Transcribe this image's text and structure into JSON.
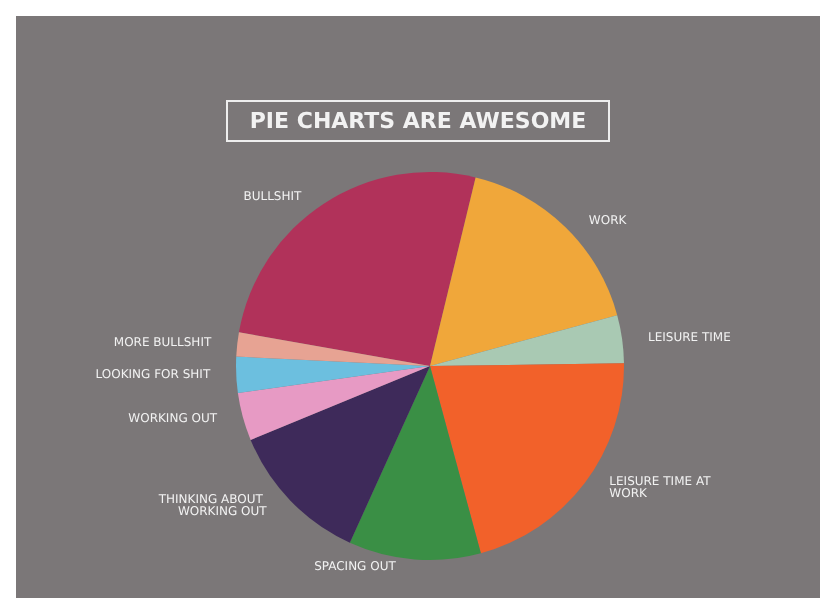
{
  "chart_data": {
    "type": "pie",
    "title": "PIE CHARTS ARE AWESOME",
    "categories": [
      "BULLSHIT",
      "WORK",
      "LEISURE TIME",
      "LEISURE TIME AT WORK",
      "SPACING OUT",
      "THINKING ABOUT WORKING OUT",
      "WORKING OUT",
      "LOOKING FOR SHIT",
      "MORE BULLSHIT"
    ],
    "values": [
      26,
      17,
      4,
      21,
      11,
      12,
      4,
      3,
      2
    ],
    "colors": [
      "#b1325a",
      "#f0a73a",
      "#a9c9b3",
      "#f2612a",
      "#3a8f45",
      "#3e2a5a",
      "#e79ac4",
      "#6cbfdf",
      "#e7a393"
    ],
    "legend": false
  }
}
